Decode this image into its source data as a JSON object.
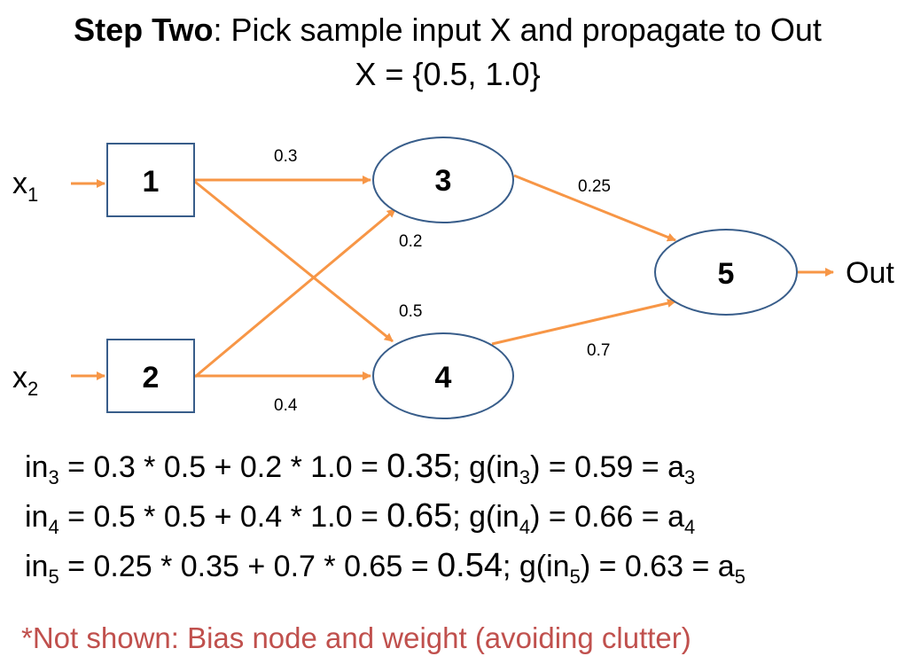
{
  "header": {
    "title_bold": "Step Two",
    "title_rest": ": Pick sample input X and propagate to Out",
    "subtitle": "X = {0.5, 1.0}"
  },
  "network": {
    "inputs": [
      {
        "name": "x",
        "sub": "1"
      },
      {
        "name": "x",
        "sub": "2"
      }
    ],
    "output_label": "Out",
    "nodes": [
      {
        "id": "1",
        "shape": "rect"
      },
      {
        "id": "2",
        "shape": "rect"
      },
      {
        "id": "3",
        "shape": "ellipse"
      },
      {
        "id": "4",
        "shape": "ellipse"
      },
      {
        "id": "5",
        "shape": "ellipse"
      }
    ],
    "edges": [
      {
        "from": "1",
        "to": "3",
        "weight": "0.3"
      },
      {
        "from": "2",
        "to": "3",
        "weight": "0.2"
      },
      {
        "from": "1",
        "to": "4",
        "weight": "0.5"
      },
      {
        "from": "2",
        "to": "4",
        "weight": "0.4"
      },
      {
        "from": "3",
        "to": "5",
        "weight": "0.25"
      },
      {
        "from": "4",
        "to": "5",
        "weight": "0.7"
      }
    ],
    "edge_color": "#f79646",
    "node_stroke_color": "#385d8a"
  },
  "equations": [
    {
      "lhs": "in",
      "lhs_sub": "3",
      "expr": " = 0.3 * 0.5 + 0.2 * 1.0 = ",
      "result": "0.35",
      "sep": ";  g(in",
      "g_sub": "3",
      "tail": ") = 0.59 = a",
      "a_sub": "3"
    },
    {
      "lhs": "in",
      "lhs_sub": "4",
      "expr": " = 0.5 * 0.5 + 0.4 * 1.0 = ",
      "result": "0.65",
      "sep": ";  g(in",
      "g_sub": "4",
      "tail": ") = 0.66 = a",
      "a_sub": "4"
    },
    {
      "lhs": "in",
      "lhs_sub": "5",
      "expr": " = 0.25 * 0.35 + 0.7 * 0.65 = ",
      "result": "0.54",
      "sep": ";  g(in",
      "g_sub": "5",
      "tail": ") = 0.63 = a",
      "a_sub": "5"
    }
  ],
  "footnote": "*Not shown: Bias node and weight (avoiding clutter)",
  "colors": {
    "footnote": "#c0504d"
  }
}
